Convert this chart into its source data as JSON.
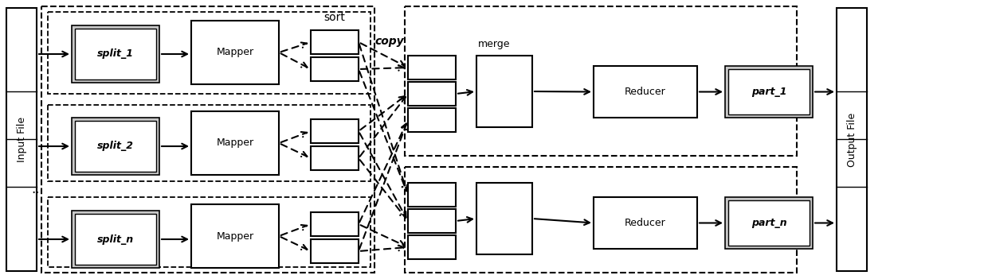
{
  "fig_width": 12.4,
  "fig_height": 3.51,
  "dpi": 100,
  "bg_color": "#ffffff",
  "input_file_label": "Input File",
  "output_file_label": "Output File",
  "sort_label": "sort",
  "copy_label": "copy",
  "merge_label": "merge",
  "split_labels": [
    "split_1",
    "split_2",
    "split_n"
  ],
  "mapper_label": "Mapper",
  "reducer_label": "Reducer",
  "part_labels": [
    "part_1",
    "part_n"
  ],
  "dots_label": "..."
}
